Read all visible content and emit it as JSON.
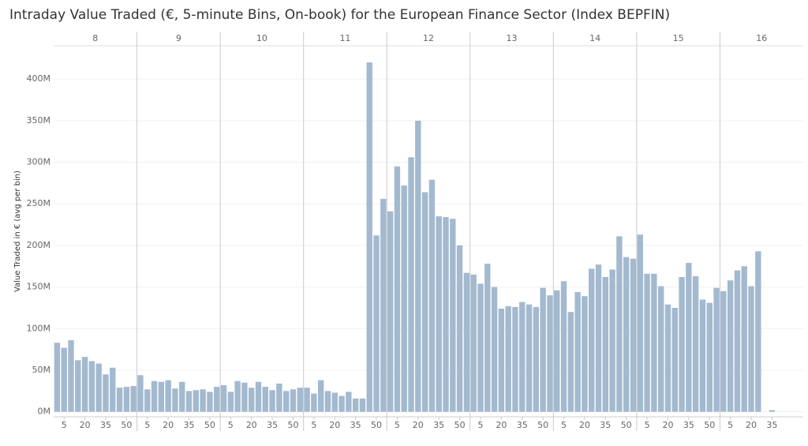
{
  "chart_data": {
    "type": "bar",
    "title": "Intraday Value Traded (€, 5-minute Bins, On-book) for the European Finance Sector (Index BEPFIN)",
    "y_label": "Value Traded in € (avg per bin)",
    "color": "#a3b9cf",
    "ylim": [
      -6,
      440
    ],
    "yticks": [
      {
        "value": 0,
        "label": "0M"
      },
      {
        "value": 50,
        "label": "50M"
      },
      {
        "value": 100,
        "label": "100M"
      },
      {
        "value": 150,
        "label": "150M"
      },
      {
        "value": 200,
        "label": "200M"
      },
      {
        "value": 250,
        "label": "250M"
      },
      {
        "value": 300,
        "label": "300M"
      },
      {
        "value": 350,
        "label": "350M"
      },
      {
        "value": 400,
        "label": "400M"
      }
    ],
    "xlim": [
      -2.5,
      57.5
    ],
    "grid": true,
    "panels": [
      {
        "label": "8",
        "x": [
          0,
          5,
          10,
          15,
          20,
          25,
          30,
          35,
          40,
          45,
          50,
          55
        ],
        "values": [
          83,
          77,
          86,
          62,
          66,
          61,
          58,
          45,
          53,
          29,
          30,
          31
        ],
        "xticks": [
          5,
          20,
          35,
          50
        ]
      },
      {
        "label": "9",
        "x": [
          0,
          5,
          10,
          15,
          20,
          25,
          30,
          35,
          40,
          45,
          50,
          55
        ],
        "values": [
          44,
          27,
          37,
          36,
          38,
          28,
          36,
          25,
          26,
          27,
          24,
          30
        ],
        "xticks": [
          5,
          20,
          35,
          50
        ]
      },
      {
        "label": "10",
        "x": [
          0,
          5,
          10,
          15,
          20,
          25,
          30,
          35,
          40,
          45,
          50,
          55
        ],
        "values": [
          32,
          24,
          37,
          35,
          29,
          36,
          30,
          26,
          34,
          25,
          27,
          29
        ],
        "xticks": [
          5,
          20,
          35,
          50
        ]
      },
      {
        "label": "11",
        "x": [
          0,
          5,
          10,
          15,
          20,
          25,
          30,
          35,
          40,
          45,
          50,
          55
        ],
        "values": [
          29,
          22,
          38,
          25,
          23,
          19,
          24,
          16,
          16,
          420,
          212,
          256
        ],
        "xticks": [
          5,
          20,
          35,
          50
        ]
      },
      {
        "label": "12",
        "x": [
          0,
          5,
          10,
          15,
          20,
          25,
          30,
          35,
          40,
          45,
          50,
          55
        ],
        "values": [
          241,
          295,
          272,
          306,
          350,
          264,
          279,
          235,
          234,
          232,
          200,
          167
        ],
        "xticks": [
          5,
          20,
          35,
          50
        ]
      },
      {
        "label": "13",
        "x": [
          0,
          5,
          10,
          15,
          20,
          25,
          30,
          35,
          40,
          45,
          50,
          55
        ],
        "values": [
          165,
          154,
          178,
          150,
          124,
          127,
          126,
          132,
          129,
          126,
          149,
          140
        ],
        "xticks": [
          5,
          20,
          35,
          50
        ]
      },
      {
        "label": "14",
        "x": [
          0,
          5,
          10,
          15,
          20,
          25,
          30,
          35,
          40,
          45,
          50,
          55
        ],
        "values": [
          146,
          157,
          120,
          144,
          139,
          172,
          177,
          162,
          171,
          211,
          186,
          184
        ],
        "xticks": [
          5,
          20,
          35,
          50
        ]
      },
      {
        "label": "15",
        "x": [
          0,
          5,
          10,
          15,
          20,
          25,
          30,
          35,
          40,
          45,
          50,
          55
        ],
        "values": [
          213,
          166,
          166,
          151,
          129,
          125,
          162,
          179,
          163,
          135,
          131,
          149
        ],
        "xticks": [
          5,
          20,
          35,
          50
        ]
      },
      {
        "label": "16",
        "x": [
          0,
          5,
          10,
          15,
          20,
          25,
          30,
          35
        ],
        "values": [
          145,
          158,
          170,
          175,
          151,
          193,
          null,
          2
        ],
        "xticks": [
          5,
          20,
          35
        ]
      }
    ]
  }
}
